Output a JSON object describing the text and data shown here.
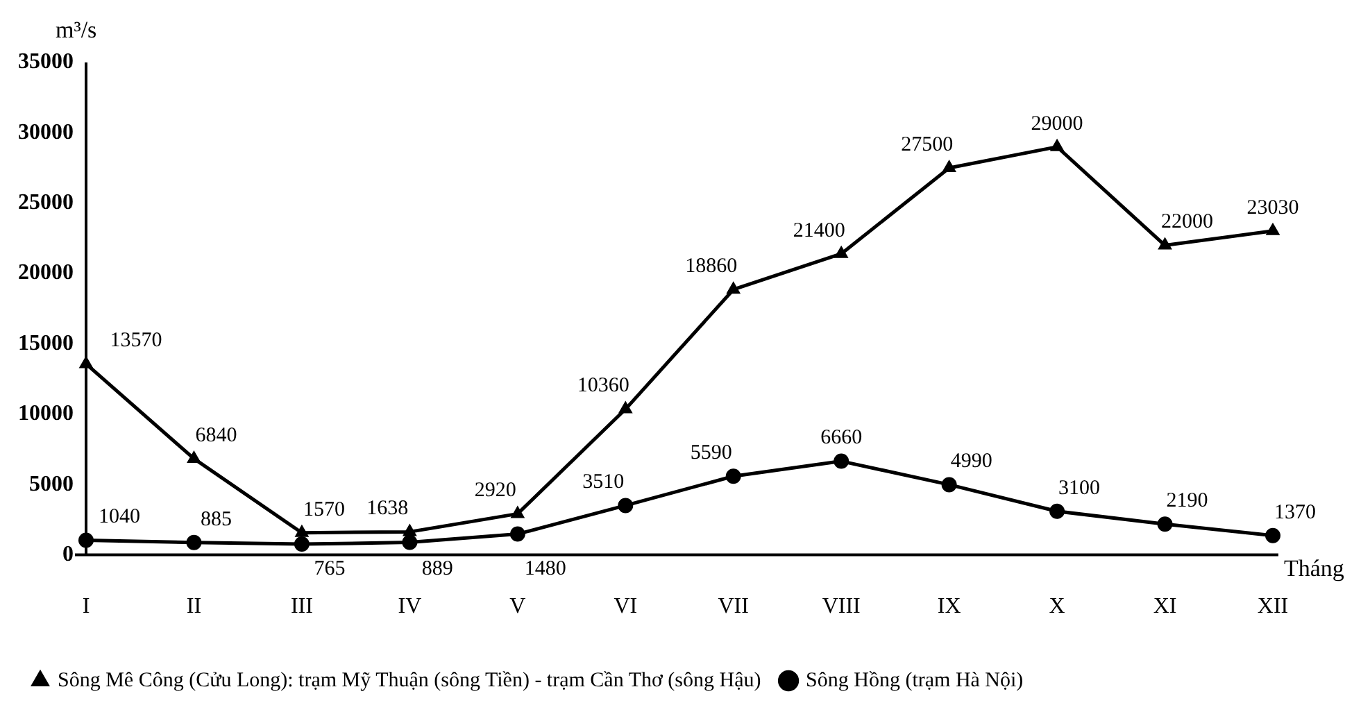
{
  "chart_data": {
    "type": "line",
    "xlabel": "Tháng",
    "ylabel": "m³/s",
    "categories": [
      "I",
      "II",
      "III",
      "IV",
      "V",
      "VI",
      "VII",
      "VIII",
      "IX",
      "X",
      "XI",
      "XII"
    ],
    "series": [
      {
        "name": "Sông Mê Công (Cửu Long): trạm Mỹ Thuận (sông Tiền) - trạm Cần Thơ (sông Hậu)",
        "color": "#000000",
        "marker": "triangle",
        "values": [
          13570,
          6840,
          1570,
          1638,
          2920,
          10360,
          18860,
          21400,
          27500,
          29000,
          22000,
          23030
        ]
      },
      {
        "name": "Sông Hồng (trạm Hà Nội)",
        "color": "#000000",
        "marker": "circle",
        "values": [
          1040,
          885,
          765,
          889,
          1480,
          3510,
          5590,
          6660,
          4990,
          3100,
          2190,
          1370
        ]
      }
    ],
    "ylim": [
      0,
      35000
    ],
    "yticks": [
      0,
      5000,
      10000,
      15000,
      20000,
      25000,
      30000,
      35000
    ],
    "grid": false,
    "legend": "bottom",
    "data_labels": true,
    "line_style": "solid"
  }
}
